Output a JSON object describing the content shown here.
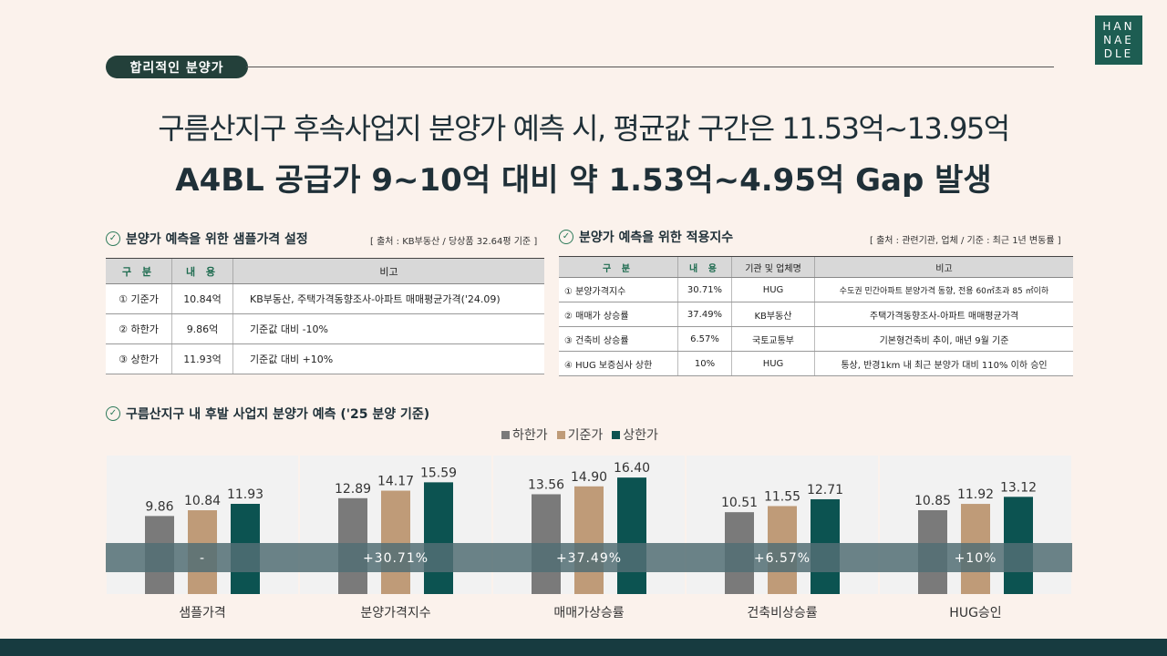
{
  "header": {
    "tag": "합리적인 분양가",
    "logo_lines": [
      "HAN",
      "NAE",
      "DLE"
    ],
    "headline1": "구름산지구 후속사업지 분양가 예측 시, 평균값 구간은 11.53억~13.95억",
    "headline2": "A4BL 공급가 9~10억 대비 약 1.53억~4.95억 Gap 발생"
  },
  "table1": {
    "title": "분양가 예측을 위한 샘플가격 설정",
    "source": "[ 출처 : KB부동산 / 당상품 32.64평 기준 ]",
    "columns": [
      "구 분",
      "내 용",
      "비고"
    ],
    "rows": [
      [
        "① 기준가",
        "10.84억",
        "KB부동산, 주택가격동향조사-아파트 매매평균가격('24.09)"
      ],
      [
        "② 하한가",
        "9.86억",
        "기준값 대비 -10%"
      ],
      [
        "③ 상한가",
        "11.93억",
        "기준값 대비 +10%"
      ]
    ]
  },
  "table2": {
    "title": "분양가 예측을 위한 적용지수",
    "source": "[ 출처 : 관련기관, 업체 / 기준 : 최근 1년 변동률 ]",
    "columns": [
      "구 분",
      "내 용",
      "기관 및 업체명",
      "비고"
    ],
    "rows": [
      [
        "① 분양가격지수",
        "30.71%",
        "HUG",
        "수도권 민간아파트 분양가격 동향, 전용 60㎡초과 85 ㎡이하"
      ],
      [
        "② 매매가 상승률",
        "37.49%",
        "KB부동산",
        "주택가격동향조사-아파트 매매평균가격"
      ],
      [
        "③ 건축비 상승률",
        "6.57%",
        "국토교통부",
        "기본형건축비 추이, 매년 9월 기준"
      ],
      [
        "④ HUG 보증심사 상한",
        "10%",
        "HUG",
        "통상, 반경1km 내 최근 분양가 대비 110% 이하 승인"
      ]
    ]
  },
  "chart_title": "구름산지구 내 후발 사업지 분양가 예측 ('25 분양 기준)",
  "colors": {
    "low": "#7a7a7a",
    "base": "#bf9b78",
    "high": "#0c5351",
    "band": "#526f74"
  },
  "chart_data": {
    "type": "bar",
    "categories": [
      "샘플가격",
      "분양가격지수",
      "매매가상승률",
      "건축비상승률",
      "HUG승인"
    ],
    "series": [
      {
        "name": "하한가",
        "values": [
          9.86,
          12.89,
          13.56,
          10.51,
          10.85
        ]
      },
      {
        "name": "기준가",
        "values": [
          10.84,
          14.17,
          14.9,
          11.55,
          11.92
        ]
      },
      {
        "name": "상한가",
        "values": [
          11.93,
          15.59,
          16.4,
          12.71,
          13.12
        ]
      }
    ],
    "annotations": [
      "-",
      "+30.71%",
      "+37.49%",
      "+6.57%",
      "+10%"
    ],
    "legend": "top-center"
  }
}
